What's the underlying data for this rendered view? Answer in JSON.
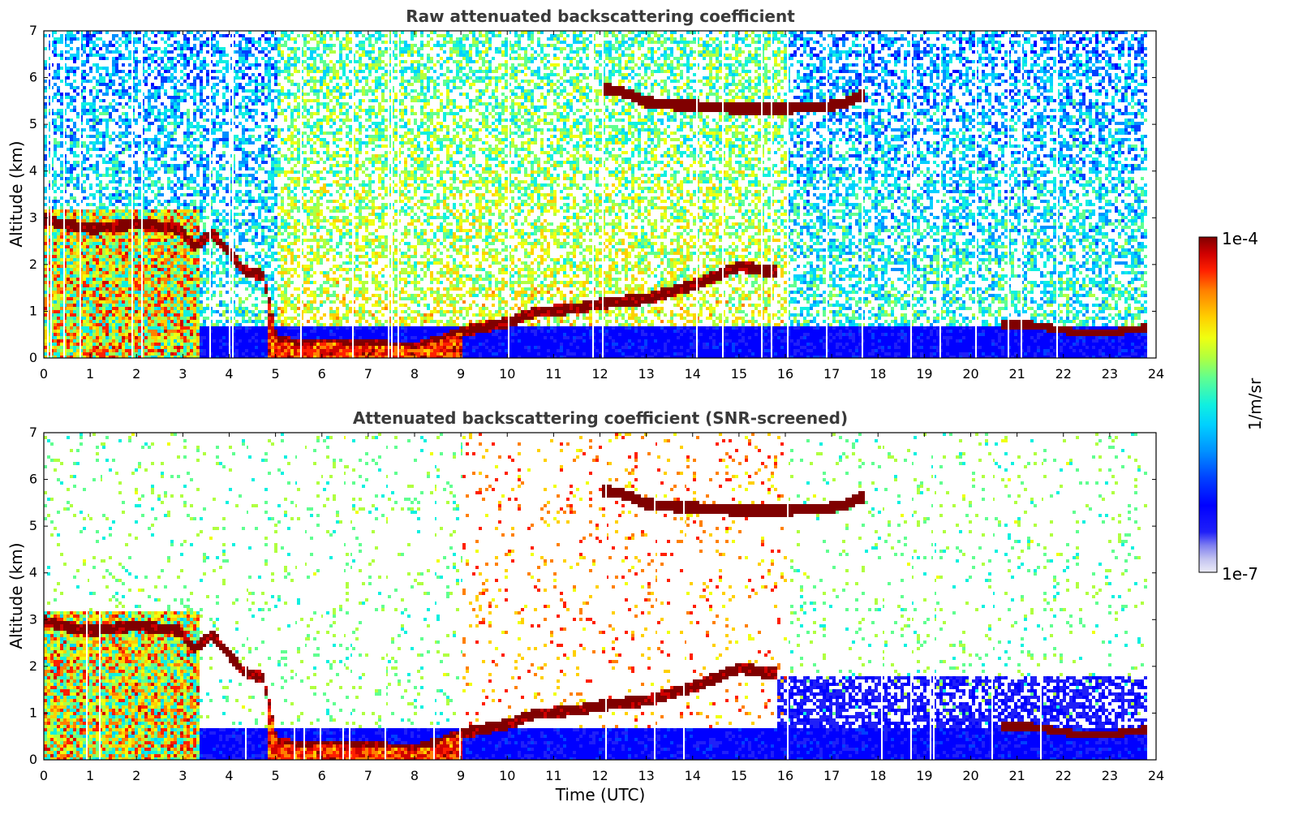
{
  "chart_data": [
    {
      "type": "heatmap",
      "title": "Raw attenuated backscattering coefficient",
      "xlabel": "",
      "ylabel": "Altitude (km)",
      "xlim": [
        0,
        24
      ],
      "ylim": [
        0,
        7
      ],
      "x_ticks": [
        "0",
        "1",
        "2",
        "3",
        "4",
        "5",
        "6",
        "7",
        "8",
        "9",
        "10",
        "11",
        "12",
        "13",
        "14",
        "15",
        "16",
        "17",
        "18",
        "19",
        "20",
        "21",
        "22",
        "23",
        "24"
      ],
      "y_ticks": [
        "0",
        "1",
        "2",
        "3",
        "4",
        "5",
        "6",
        "7"
      ],
      "data_coverage_x": [
        0,
        23.8
      ],
      "boundary_layer_km": [
        [
          0,
          3.0
        ],
        [
          0.3,
          2.9
        ],
        [
          1,
          2.8
        ],
        [
          2,
          2.9
        ],
        [
          2.9,
          2.8
        ],
        [
          3.2,
          2.4
        ],
        [
          3.6,
          2.7
        ],
        [
          4.3,
          1.9
        ],
        [
          4.7,
          1.8
        ],
        [
          5,
          0.4
        ],
        [
          5.5,
          0.3
        ],
        [
          6,
          0.35
        ],
        [
          7,
          0.3
        ],
        [
          8,
          0.25
        ],
        [
          8.5,
          0.4
        ],
        [
          9,
          0.6
        ],
        [
          9.5,
          0.7
        ],
        [
          10,
          0.8
        ],
        [
          10.5,
          1.0
        ],
        [
          11,
          1.05
        ],
        [
          11.5,
          1.1
        ],
        [
          12,
          1.2
        ],
        [
          13,
          1.3
        ],
        [
          14,
          1.6
        ],
        [
          15,
          2.0
        ],
        [
          15.5,
          1.9
        ]
      ],
      "cirrus_layer_km": [
        [
          12,
          5.8
        ],
        [
          12.4,
          5.75
        ],
        [
          13,
          5.5
        ],
        [
          13.6,
          5.45
        ],
        [
          14.5,
          5.4
        ],
        [
          15.3,
          5.35
        ],
        [
          16,
          5.38
        ],
        [
          16.8,
          5.4
        ],
        [
          17.3,
          5.5
        ],
        [
          17.6,
          5.65
        ]
      ],
      "low_cloud_km": [
        [
          20.8,
          0.75
        ],
        [
          21.2,
          0.75
        ],
        [
          22.3,
          0.58
        ],
        [
          23,
          0.58
        ],
        [
          23.7,
          0.68
        ]
      ]
    },
    {
      "type": "heatmap",
      "title": "Attenuated backscattering coefficient (SNR-screened)",
      "xlabel": "Time (UTC)",
      "ylabel": "Altitude (km)",
      "xlim": [
        0,
        24
      ],
      "ylim": [
        0,
        7
      ],
      "x_ticks": [
        "0",
        "1",
        "2",
        "3",
        "4",
        "5",
        "6",
        "7",
        "8",
        "9",
        "10",
        "11",
        "12",
        "13",
        "14",
        "15",
        "16",
        "17",
        "18",
        "19",
        "20",
        "21",
        "22",
        "23",
        "24"
      ],
      "y_ticks": [
        "0",
        "1",
        "2",
        "3",
        "4",
        "5",
        "6",
        "7"
      ],
      "data_coverage_x": [
        0,
        23.8
      ],
      "screened": true
    }
  ],
  "colorbar": {
    "max_label": "1e-4",
    "min_label": "1e-7",
    "units": "1/m/sr",
    "scale": "log",
    "colormap": [
      "#ececf7",
      "#c2c2f0",
      "#7f7ff0",
      "#2020f8",
      "#0000ff",
      "#0040ff",
      "#0090ff",
      "#00d0ff",
      "#10f0e0",
      "#60ff90",
      "#b0ff40",
      "#f0ff10",
      "#ffd000",
      "#ff8000",
      "#ff2000",
      "#d00000",
      "#800000"
    ]
  }
}
